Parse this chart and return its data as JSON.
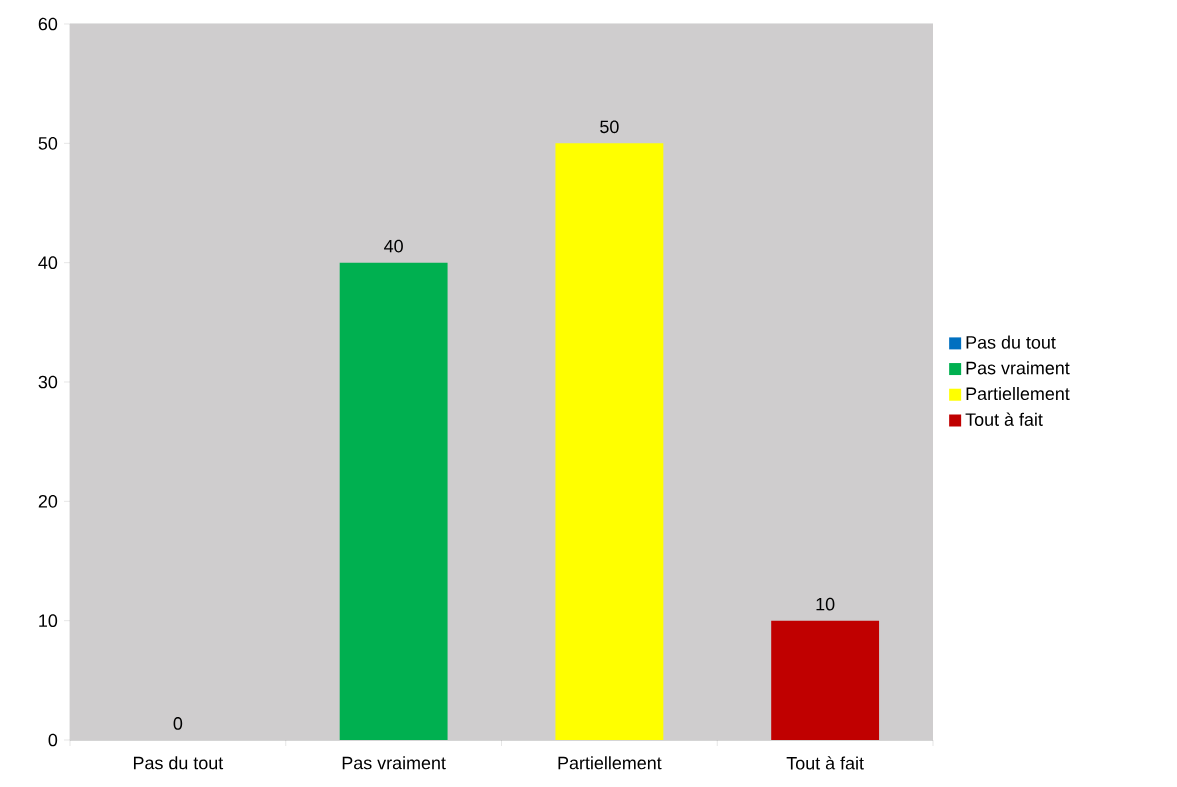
{
  "chart_data": {
    "type": "bar",
    "categories": [
      "Pas du tout",
      "Pas vraiment",
      "Partiellement",
      "Tout à fait"
    ],
    "series": [
      {
        "name": "Pas du tout",
        "color": "#0070c0",
        "values": [
          0,
          null,
          null,
          null
        ]
      },
      {
        "name": "Pas vraiment",
        "color": "#00b050",
        "values": [
          null,
          40,
          null,
          null
        ]
      },
      {
        "name": "Partiellement",
        "color": "#ffff00",
        "values": [
          null,
          null,
          50,
          null
        ]
      },
      {
        "name": "Tout à fait",
        "color": "#c00000",
        "values": [
          null,
          null,
          null,
          10
        ]
      }
    ],
    "ylim": [
      0,
      60
    ],
    "yticks": [
      0,
      10,
      20,
      30,
      40,
      50,
      60
    ],
    "grid": "y",
    "legend": "right",
    "data_labels": true
  }
}
